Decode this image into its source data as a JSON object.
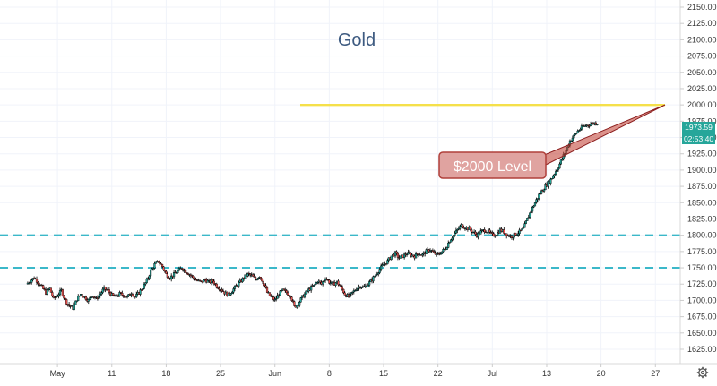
{
  "chart_data": {
    "type": "candlestick",
    "title": "Gold",
    "xlabel": "",
    "ylabel": "",
    "ylim": [
      1615,
      2160
    ],
    "y_ticks": [
      1625,
      1650,
      1675,
      1700,
      1725,
      1750,
      1775,
      1800,
      1825,
      1850,
      1875,
      1900,
      1925,
      1950,
      1975,
      2000,
      2025,
      2050,
      2075,
      2100,
      2125,
      2150
    ],
    "y_tick_labels": [
      "1625.00",
      "1650.00",
      "1675.00",
      "1700.00",
      "1725.00",
      "1750.00",
      "1775.00",
      "1800.00",
      "1825.00",
      "1850.00",
      "1875.00",
      "1900.00",
      "1925.00",
      "1950.00",
      "1975.00",
      "2000.00",
      "2025.00",
      "2050.00",
      "2075.00",
      "2100.00",
      "2125.00",
      "2150.00"
    ],
    "x_ticks": [
      {
        "day": 4,
        "label": "May"
      },
      {
        "day": 11,
        "label": "11"
      },
      {
        "day": 18,
        "label": "18"
      },
      {
        "day": 25,
        "label": "25"
      },
      {
        "day": 32,
        "label": "Jun"
      },
      {
        "day": 39,
        "label": "8"
      },
      {
        "day": 46,
        "label": "15"
      },
      {
        "day": 53,
        "label": "22"
      },
      {
        "day": 60,
        "label": "Jul"
      },
      {
        "day": 67,
        "label": "13"
      },
      {
        "day": 74,
        "label": "20"
      },
      {
        "day": 81,
        "label": "27"
      }
    ],
    "xlim_days": [
      -3.4,
      84.2
    ],
    "up_color": "#26a69a",
    "down_color": "#ef5350",
    "line_color": "#000000",
    "close_series": [
      [
        0,
        1725
      ],
      [
        0.5,
        1730
      ],
      [
        1,
        1735
      ],
      [
        1.5,
        1728
      ],
      [
        2,
        1720
      ],
      [
        2.5,
        1712
      ],
      [
        3,
        1718
      ],
      [
        3.5,
        1702
      ],
      [
        4,
        1708
      ],
      [
        4.5,
        1715
      ],
      [
        5,
        1700
      ],
      [
        5.5,
        1692
      ],
      [
        6,
        1688
      ],
      [
        6.5,
        1702
      ],
      [
        7,
        1710
      ],
      [
        7.5,
        1705
      ],
      [
        8,
        1700
      ],
      [
        8.5,
        1708
      ],
      [
        9,
        1702
      ],
      [
        9.5,
        1710
      ],
      [
        10,
        1718
      ],
      [
        10.5,
        1715
      ],
      [
        11,
        1708
      ],
      [
        11.5,
        1705
      ],
      [
        12,
        1710
      ],
      [
        12.5,
        1708
      ],
      [
        13,
        1705
      ],
      [
        13.5,
        1712
      ],
      [
        14,
        1705
      ],
      [
        14.5,
        1712
      ],
      [
        15,
        1720
      ],
      [
        15.5,
        1730
      ],
      [
        16,
        1745
      ],
      [
        16.5,
        1755
      ],
      [
        17,
        1760
      ],
      [
        17.5,
        1752
      ],
      [
        18,
        1740
      ],
      [
        18.5,
        1735
      ],
      [
        19,
        1740
      ],
      [
        19.5,
        1745
      ],
      [
        20,
        1750
      ],
      [
        20.5,
        1745
      ],
      [
        21,
        1740
      ],
      [
        21.5,
        1735
      ],
      [
        22,
        1730
      ],
      [
        22.5,
        1728
      ],
      [
        23,
        1732
      ],
      [
        23.5,
        1728
      ],
      [
        24,
        1730
      ],
      [
        24.5,
        1722
      ],
      [
        25,
        1718
      ],
      [
        25.5,
        1712
      ],
      [
        26,
        1708
      ],
      [
        26.5,
        1715
      ],
      [
        27,
        1722
      ],
      [
        27.5,
        1728
      ],
      [
        28,
        1735
      ],
      [
        28.5,
        1740
      ],
      [
        29,
        1738
      ],
      [
        29.5,
        1732
      ],
      [
        30,
        1738
      ],
      [
        30.5,
        1728
      ],
      [
        31,
        1712
      ],
      [
        31.5,
        1705
      ],
      [
        32,
        1700
      ],
      [
        32.5,
        1710
      ],
      [
        33,
        1715
      ],
      [
        33.5,
        1712
      ],
      [
        34,
        1708
      ],
      [
        34.5,
        1690
      ],
      [
        35,
        1695
      ],
      [
        35.5,
        1705
      ],
      [
        36,
        1712
      ],
      [
        36.5,
        1718
      ],
      [
        37,
        1722
      ],
      [
        37.5,
        1730
      ],
      [
        38,
        1725
      ],
      [
        38.5,
        1735
      ],
      [
        39,
        1728
      ],
      [
        39.5,
        1725
      ],
      [
        40,
        1728
      ],
      [
        40.5,
        1720
      ],
      [
        41,
        1710
      ],
      [
        41.5,
        1705
      ],
      [
        42,
        1712
      ],
      [
        42.5,
        1718
      ],
      [
        43,
        1722
      ],
      [
        43.5,
        1720
      ],
      [
        44,
        1725
      ],
      [
        44.5,
        1732
      ],
      [
        45,
        1740
      ],
      [
        45.5,
        1748
      ],
      [
        46,
        1755
      ],
      [
        46.5,
        1760
      ],
      [
        47,
        1768
      ],
      [
        47.5,
        1772
      ],
      [
        48,
        1765
      ],
      [
        48.5,
        1768
      ],
      [
        49,
        1772
      ],
      [
        49.5,
        1770
      ],
      [
        50,
        1768
      ],
      [
        50.5,
        1772
      ],
      [
        51,
        1770
      ],
      [
        51.5,
        1775
      ],
      [
        52,
        1778
      ],
      [
        52.5,
        1772
      ],
      [
        53,
        1770
      ],
      [
        53.5,
        1775
      ],
      [
        54,
        1780
      ],
      [
        54.5,
        1792
      ],
      [
        55,
        1800
      ],
      [
        55.5,
        1808
      ],
      [
        56,
        1815
      ],
      [
        56.5,
        1812
      ],
      [
        57,
        1810
      ],
      [
        57.5,
        1805
      ],
      [
        58,
        1800
      ],
      [
        58.5,
        1805
      ],
      [
        59,
        1808
      ],
      [
        59.5,
        1805
      ],
      [
        60,
        1800
      ],
      [
        60.5,
        1802
      ],
      [
        61,
        1808
      ],
      [
        61.5,
        1805
      ],
      [
        62,
        1800
      ],
      [
        62.5,
        1798
      ],
      [
        63,
        1802
      ],
      [
        63.5,
        1805
      ],
      [
        64,
        1810
      ],
      [
        64.5,
        1825
      ],
      [
        65,
        1838
      ],
      [
        65.5,
        1850
      ],
      [
        66,
        1862
      ],
      [
        66.5,
        1870
      ],
      [
        67,
        1878
      ],
      [
        67.5,
        1885
      ],
      [
        68,
        1895
      ],
      [
        68.5,
        1905
      ],
      [
        69,
        1918
      ],
      [
        69.5,
        1930
      ],
      [
        70,
        1945
      ],
      [
        70.5,
        1952
      ],
      [
        71,
        1960
      ],
      [
        71.5,
        1965
      ],
      [
        72,
        1968
      ],
      [
        72.5,
        1970
      ],
      [
        73,
        1972
      ],
      [
        73.5,
        1972
      ]
    ]
  },
  "annotations": {
    "callout_label": "$2000 Level",
    "price_tag": "1973.59",
    "countdown_tag": "02:53:40",
    "level_line_value": 2000,
    "level_line_color": "#f5e04a",
    "support_levels": [
      1800,
      1750
    ],
    "support_color": "#3bb8c9"
  }
}
